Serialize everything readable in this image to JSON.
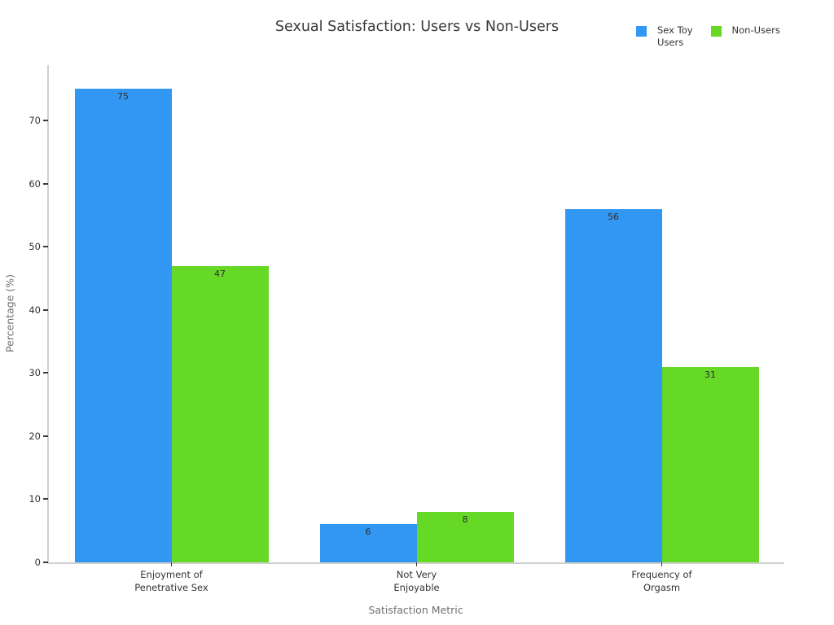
{
  "chart_data": {
    "type": "bar",
    "title": "Sexual Satisfaction: Users vs Non-Users",
    "xlabel": "Satisfaction Metric",
    "ylabel": "Percentage (%)",
    "categories": [
      "Enjoyment of\nPenetrative Sex",
      "Not Very\nEnjoyable",
      "Frequency of\nOrgasm"
    ],
    "series": [
      {
        "name": "Sex Toy Users",
        "label_display": "Sex Toy\nUsers",
        "color": "#3296F3",
        "values": [
          75,
          6,
          56
        ]
      },
      {
        "name": "Non-Users",
        "label_display": "Non-Users",
        "color": "#66D826",
        "values": [
          47,
          8,
          31
        ]
      }
    ],
    "bar_value_labels": [
      [
        75,
        6,
        56
      ],
      [
        47,
        8,
        31
      ]
    ],
    "yticks": [
      0,
      10,
      20,
      30,
      40,
      50,
      60,
      70
    ],
    "ylim": [
      0,
      78.8
    ],
    "grid": false,
    "legend_position": "top-right",
    "background": "#ffffff",
    "axis_line_color": "#d0d0d0",
    "tick_label_color": "#333333",
    "axis_title_color": "#707070",
    "title_color": "#3a3a3a"
  }
}
